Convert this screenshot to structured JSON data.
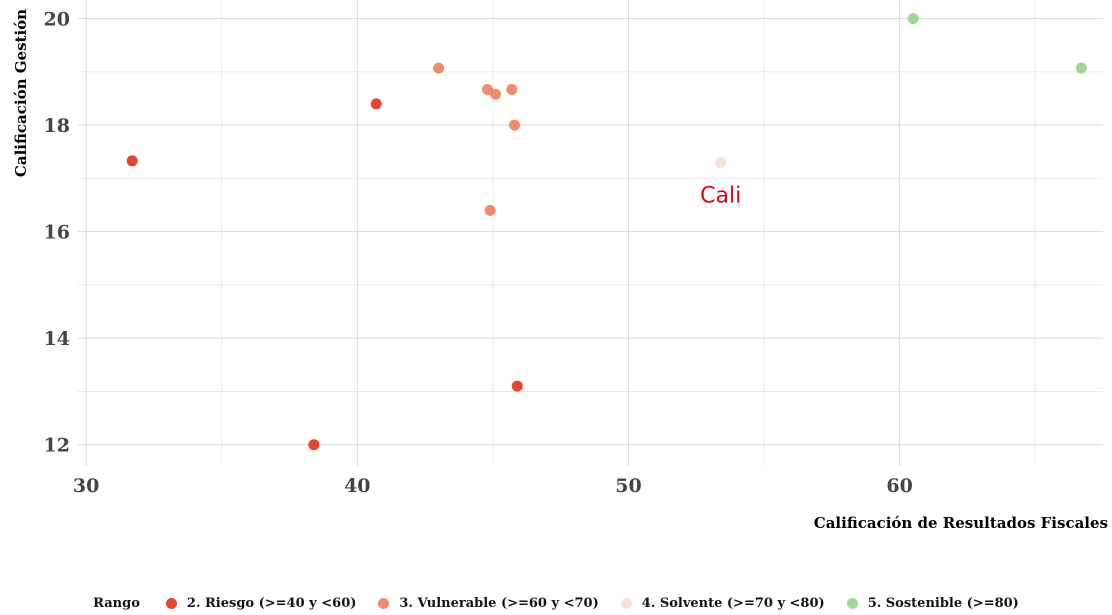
{
  "chart_data": {
    "type": "scatter",
    "xlabel": "Calificación de Resultados Fiscales",
    "ylabel": "Calificación Gestión",
    "xlim": [
      29.7,
      67.5
    ],
    "ylim": [
      11.6,
      20.35
    ],
    "xticks": [
      30,
      40,
      50,
      60
    ],
    "yticks": [
      12,
      14,
      16,
      18,
      20
    ],
    "grid": true,
    "legend_position": "bottom",
    "legend_title": "Rango",
    "series": [
      {
        "name": "2. Riesgo (>=40 y <60)",
        "color": "#e8412c",
        "points": [
          {
            "x": 31.7,
            "y": 17.33
          },
          {
            "x": 40.7,
            "y": 18.4
          },
          {
            "x": 38.4,
            "y": 12.0
          },
          {
            "x": 45.9,
            "y": 13.1
          }
        ]
      },
      {
        "name": "3. Vulnerable (>=60 y <70)",
        "color": "#f4896e",
        "points": [
          {
            "x": 43.0,
            "y": 19.07
          },
          {
            "x": 44.8,
            "y": 18.67
          },
          {
            "x": 45.1,
            "y": 18.58
          },
          {
            "x": 45.7,
            "y": 18.67
          },
          {
            "x": 45.8,
            "y": 18.0
          },
          {
            "x": 44.9,
            "y": 16.4
          }
        ]
      },
      {
        "name": "4. Solvente (>=70 y <80)",
        "color": "#fcdfd3",
        "points": [
          {
            "x": 53.4,
            "y": 17.3
          }
        ]
      },
      {
        "name": "5. Sostenible (>=80)",
        "color": "#9fd893",
        "points": [
          {
            "x": 60.5,
            "y": 20.0
          },
          {
            "x": 66.7,
            "y": 19.07
          }
        ]
      }
    ],
    "annotations": [
      {
        "text": "Cali",
        "x": 53.4,
        "y": 16.7,
        "color": "#e8000b"
      }
    ]
  }
}
